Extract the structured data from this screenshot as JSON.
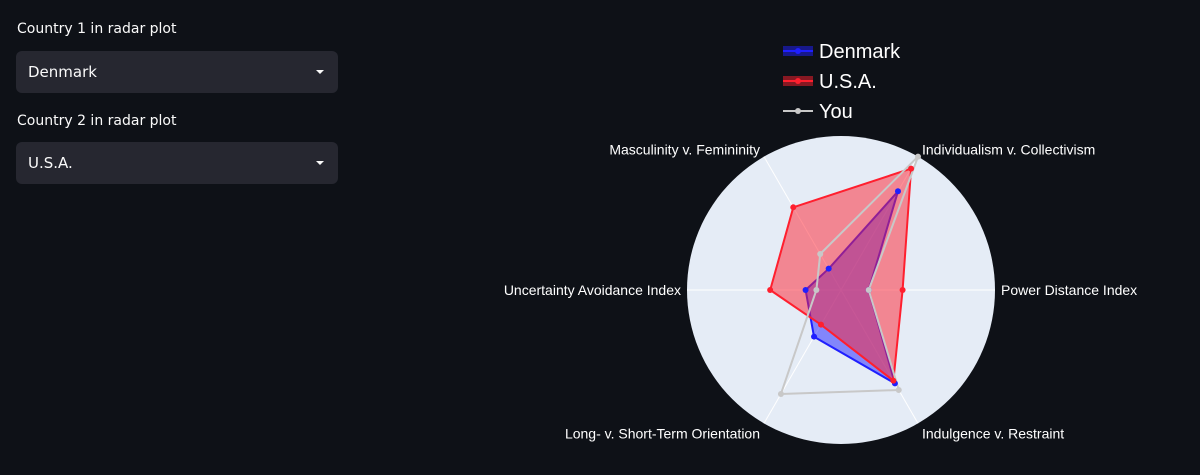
{
  "sidebar": {
    "country1": {
      "label": "Country 1 in radar plot",
      "value": "Denmark"
    },
    "country2": {
      "label": "Country 2 in radar plot",
      "value": "U.S.A."
    }
  },
  "colors": {
    "background": "#0e1117",
    "select_bg": "#262730",
    "polar_bg": "#e5ecf6",
    "denmark": "#1f1fff",
    "usa": "#ff1f2e",
    "you": "#c8c8c8"
  },
  "chart_data": {
    "type": "radar",
    "categories": [
      "Power Distance Index",
      "Individualism v. Collectivism",
      "Masculinity v. Femininity",
      "Uncertainty Avoidance Index",
      "Long- v. Short-Term Orientation",
      "Indulgence v. Restraint"
    ],
    "rlim": [
      0,
      100
    ],
    "grid": true,
    "legend_position": "top",
    "series": [
      {
        "name": "Denmark",
        "values": [
          18,
          74,
          16,
          23,
          35,
          70
        ]
      },
      {
        "name": "U.S.A.",
        "values": [
          40,
          91,
          62,
          46,
          26,
          68
        ]
      },
      {
        "name": "You",
        "values": [
          18,
          100,
          27,
          16,
          78,
          75
        ]
      }
    ]
  }
}
